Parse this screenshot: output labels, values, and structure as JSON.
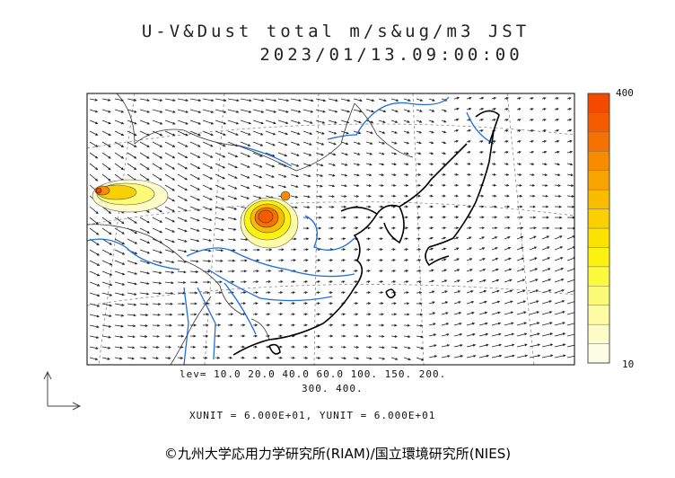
{
  "title_line1": "U-V&Dust total m/s&ug/m3 JST",
  "title_line2": "2023/01/13.09:00:00",
  "levels_line1": "lev= 10.0 20.0 40.0 60.0 100. 150. 200.",
  "levels_line2": "300. 400.",
  "units_text": "XUNIT = 6.000E+01, YUNIT = 6.000E+01",
  "copyright": "©九州大学応用力学研究所(RIAM)/国立環境研究所(NIES)",
  "colorbar": {
    "max_label": "400",
    "min_label": "10",
    "colors": [
      "#fdfde6",
      "#fdfcc8",
      "#fdfca4",
      "#fcfb78",
      "#fbfa3c",
      "#fbf212",
      "#fce200",
      "#fbd000",
      "#f9bc00",
      "#f8a400",
      "#f78c00",
      "#f67200",
      "#f55c00",
      "#f44a00"
    ]
  },
  "colors": {
    "coastline": "#000000",
    "river": "#1f6fe0",
    "boundary": "#333333",
    "arrow": "#222222"
  }
}
